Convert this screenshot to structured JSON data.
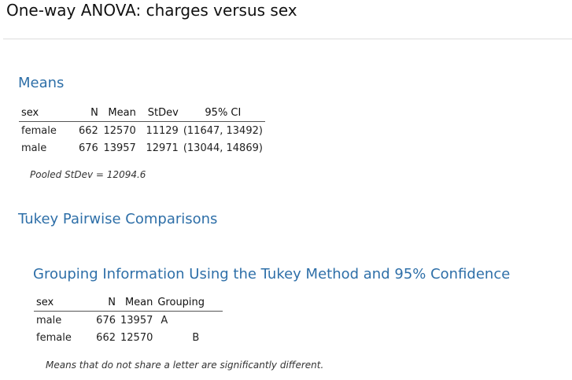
{
  "title": "One-way ANOVA: charges versus sex",
  "means": {
    "heading": "Means",
    "columns": [
      "sex",
      "N",
      "Mean",
      "StDev",
      "95% CI"
    ],
    "rows": [
      {
        "sex": "female",
        "n": "662",
        "mean": "12570",
        "stdev": "11129",
        "ci": "(11647, 13492)"
      },
      {
        "sex": "male",
        "n": "676",
        "mean": "13957",
        "stdev": "12971",
        "ci": "(13044, 14869)"
      }
    ],
    "pooled_note": "Pooled StDev = 12094.6"
  },
  "tukey": {
    "heading": "Tukey Pairwise Comparisons"
  },
  "grouping": {
    "heading": "Grouping Information Using the Tukey Method and 95% Confidence",
    "columns": [
      "sex",
      "N",
      "Mean",
      "Grouping"
    ],
    "rows": [
      {
        "sex": "male",
        "n": "676",
        "mean": "13957",
        "group_a": "A",
        "group_b": ""
      },
      {
        "sex": "female",
        "n": "662",
        "mean": "12570",
        "group_a": "",
        "group_b": "B"
      }
    ],
    "note": "Means that do not share a letter are significantly different."
  }
}
